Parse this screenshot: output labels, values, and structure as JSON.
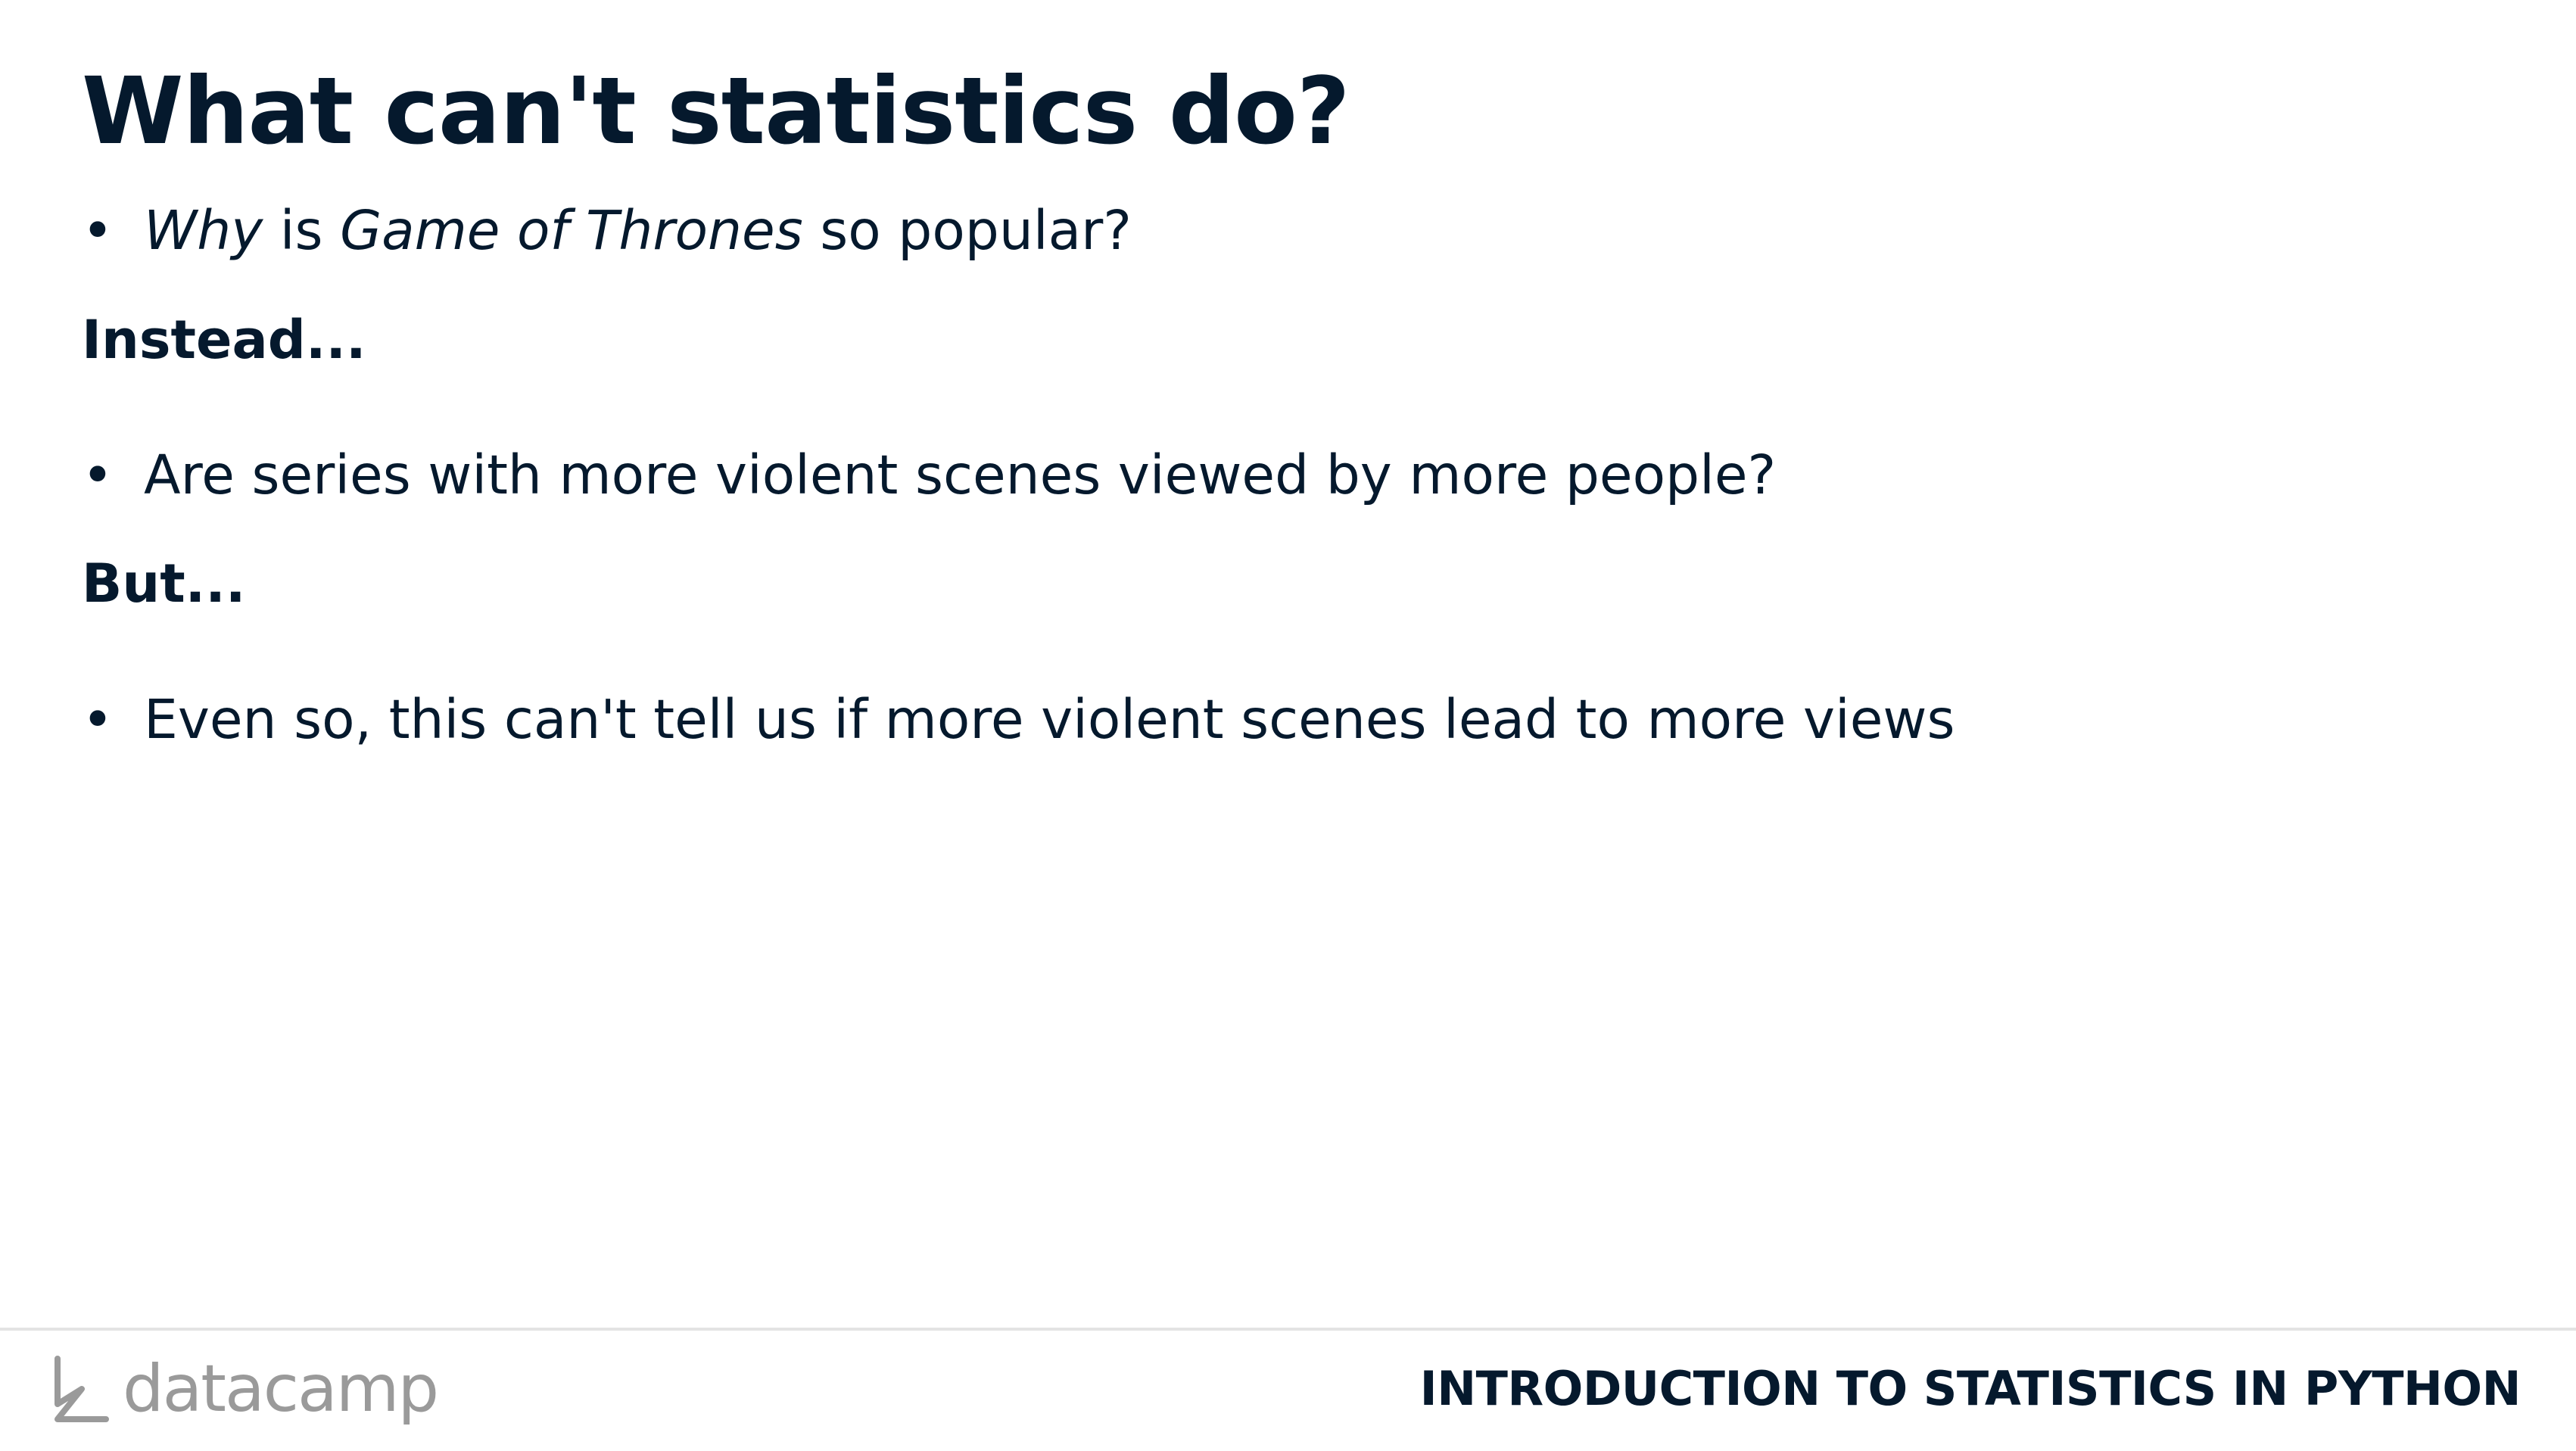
{
  "slide": {
    "title": "What can't statistics do?",
    "bullet_1": {
      "marker": "•",
      "part_1_italic": "Why",
      "part_2": " is ",
      "part_3_italic": "Game of Thrones",
      "part_4": " so popular?"
    },
    "label_instead": "Instead...",
    "bullet_2": {
      "marker": "•",
      "text": "Are series with more violent scenes viewed by more people?"
    },
    "label_but": "But...",
    "bullet_3": {
      "marker": "•",
      "text": "Even so, this can't tell us if more violent scenes lead to more views"
    }
  },
  "footer": {
    "logo_icon": "datacamp-logo-icon",
    "logo_text": "datacamp",
    "course_name": "INTRODUCTION TO STATISTICS IN PYTHON"
  },
  "colors": {
    "text": "#05192d",
    "logo": "#9a9a9a",
    "divider": "#e3e3e3",
    "background": "#ffffff"
  }
}
